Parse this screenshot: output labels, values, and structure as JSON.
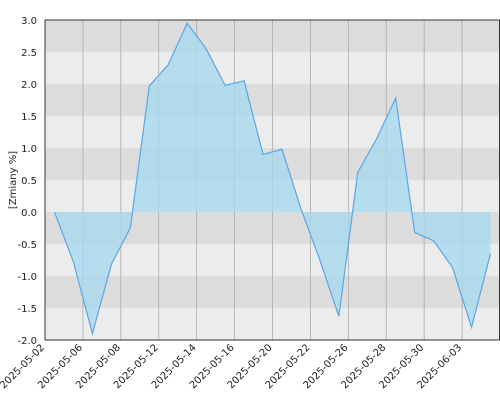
{
  "chart_data": {
    "type": "area",
    "y_label": "[Zmiany %]",
    "categories": [
      "2025-05-02",
      null,
      "2025-05-06",
      null,
      "2025-05-08",
      null,
      "2025-05-12",
      null,
      "2025-05-14",
      null,
      "2025-05-16",
      null,
      "2025-05-20",
      null,
      "2025-05-22",
      null,
      "2025-05-26",
      null,
      "2025-05-28",
      null,
      "2025-05-30",
      null,
      "2025-06-03",
      null
    ],
    "values": [
      0.0,
      -0.78,
      -1.9,
      -0.82,
      -0.25,
      1.97,
      2.3,
      2.95,
      2.55,
      1.98,
      2.05,
      0.9,
      0.98,
      0.05,
      -0.75,
      -1.63,
      0.62,
      1.15,
      1.78,
      -0.32,
      -0.45,
      -0.87,
      -1.8,
      -0.65
    ],
    "color": "#5aa6e6",
    "fill_color": "#a9d9ef",
    "ylim": [
      -2.0,
      3.0
    ],
    "yticks": [
      {
        "value": -2.0,
        "label": "-2.0"
      },
      {
        "value": -1.5,
        "label": "-1.5"
      },
      {
        "value": -1.0,
        "label": "-1.0"
      },
      {
        "value": -0.5,
        "label": "-0.5"
      },
      {
        "value": 0.0,
        "label": "0.0"
      },
      {
        "value": 0.5,
        "label": "0.5"
      },
      {
        "value": 1.0,
        "label": "1.0"
      },
      {
        "value": 1.5,
        "label": "1.5"
      },
      {
        "value": 2.0,
        "label": "2.0"
      },
      {
        "value": 2.5,
        "label": "2.5"
      },
      {
        "value": 3.0,
        "label": "3.0"
      }
    ],
    "grid": true
  }
}
